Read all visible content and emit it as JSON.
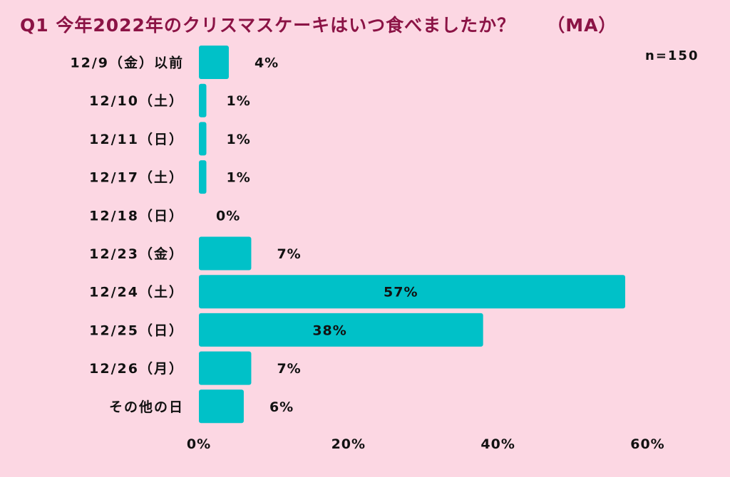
{
  "title": {
    "text": "Q1 今年2022年のクリスマスケーキはいつ食べましたか？",
    "tag": "（MA）"
  },
  "sample_size": "n=150",
  "colors": {
    "background": "#fcd7e3",
    "bar": "#00c1c8",
    "title": "#8b1345",
    "text": "#111111"
  },
  "chart_data": {
    "type": "bar",
    "orientation": "horizontal",
    "categories": [
      "12/9（金）以前",
      "12/10（土）",
      "12/11（日）",
      "12/17（土）",
      "12/18（日）",
      "12/23（金）",
      "12/24（土）",
      "12/25（日）",
      "12/26（月）",
      "その他の日"
    ],
    "values": [
      4,
      1,
      1,
      1,
      0,
      7,
      57,
      38,
      7,
      6
    ],
    "value_labels": [
      "4%",
      "1%",
      "1%",
      "1%",
      "0%",
      "7%",
      "57%",
      "38%",
      "7%",
      "6%"
    ],
    "xlim": [
      0,
      60
    ],
    "xticks": [
      0,
      20,
      40,
      60
    ],
    "xtick_labels": [
      "0%",
      "20%",
      "40%",
      "60%"
    ],
    "grid": false,
    "legend": "none"
  }
}
